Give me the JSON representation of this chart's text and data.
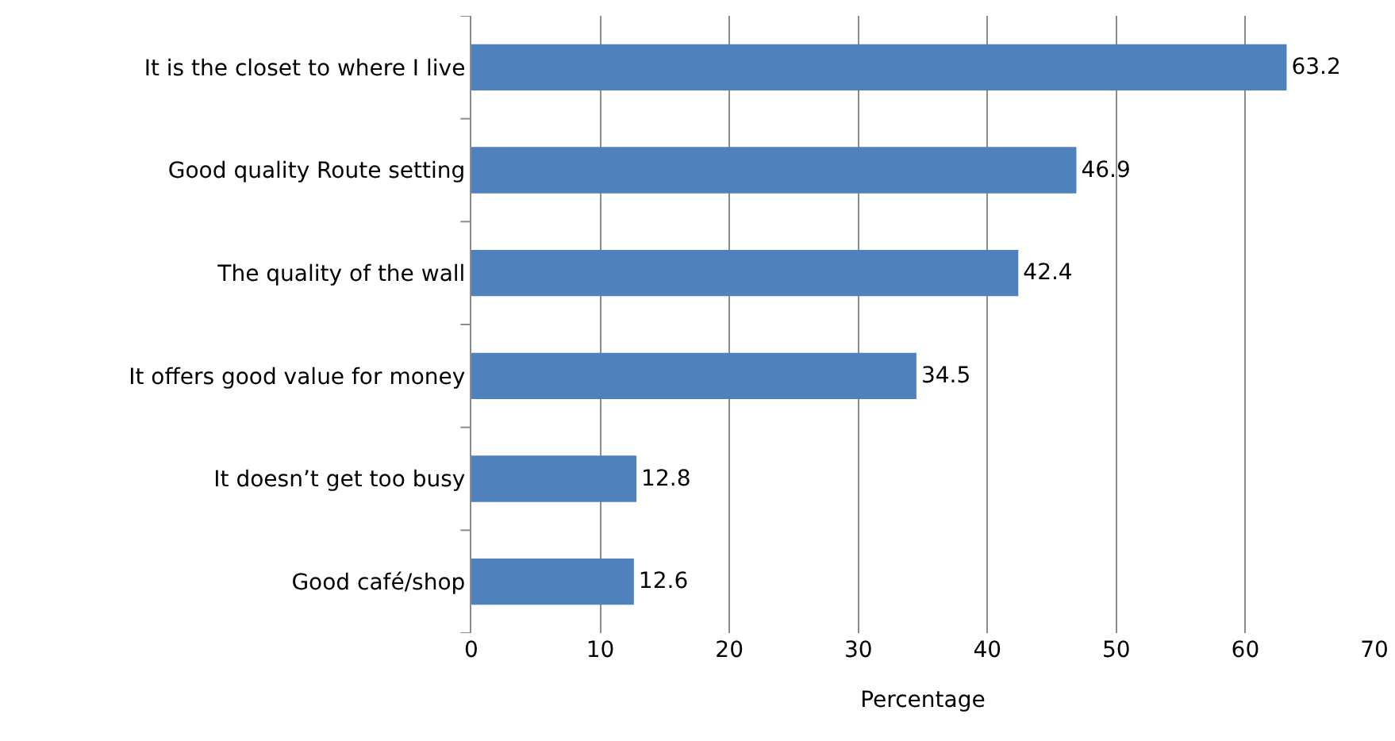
{
  "chart_data": {
    "type": "bar",
    "orientation": "horizontal",
    "xlabel": "Percentage",
    "categories": [
      "It is the closet to where I live",
      "Good quality Route setting",
      "The quality of the wall",
      "It offers good value for money",
      "It doesn’t get too busy",
      "Good café/shop"
    ],
    "values": [
      63.2,
      46.9,
      42.4,
      34.5,
      12.8,
      12.6
    ],
    "color": "#4f81bd",
    "xlim": [
      0,
      70
    ],
    "xticks": [
      0,
      10,
      20,
      30,
      40,
      50,
      60,
      70
    ],
    "grid": "x",
    "data_labels": true
  }
}
